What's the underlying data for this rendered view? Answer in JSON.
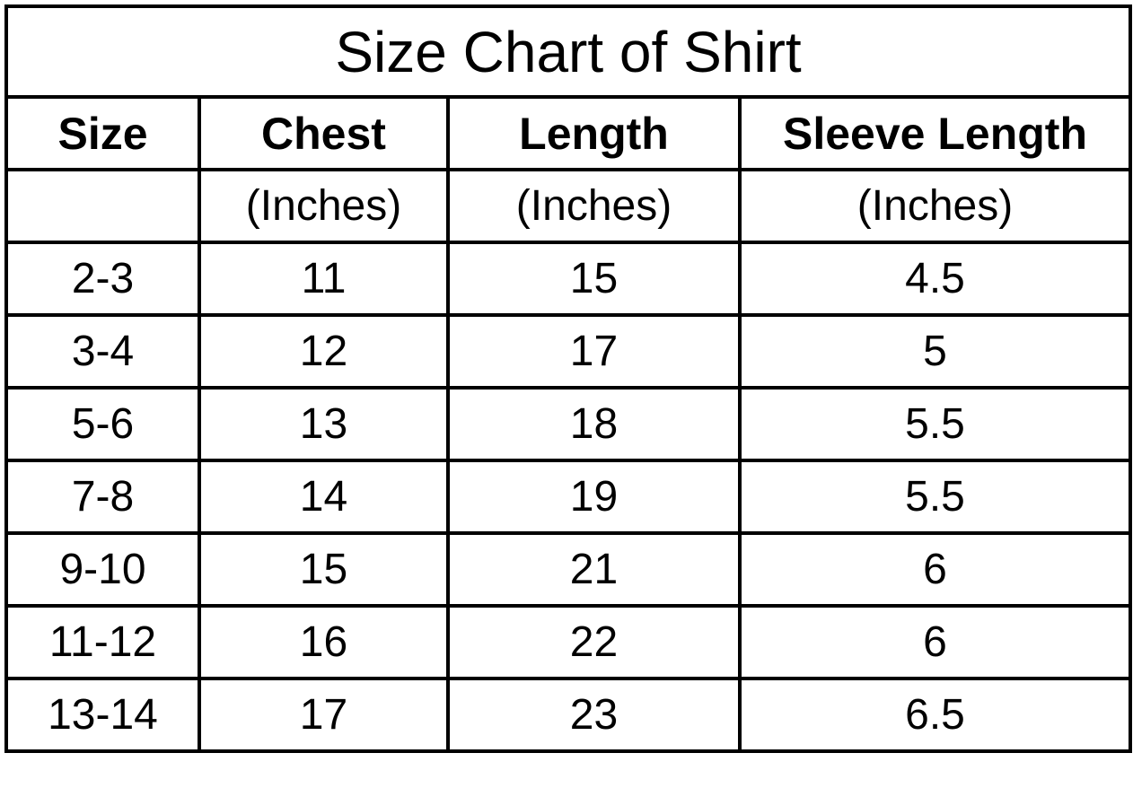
{
  "title": "Size Chart of  Shirt",
  "headers": [
    "Size",
    "Chest",
    "Length",
    "Sleeve Length"
  ],
  "units": [
    "",
    "(Inches)",
    "(Inches)",
    "(Inches)"
  ],
  "rows": [
    [
      "2-3",
      "11",
      "15",
      "4.5"
    ],
    [
      "3-4",
      "12",
      "17",
      "5"
    ],
    [
      "5-6",
      "13",
      "18",
      "5.5"
    ],
    [
      "7-8",
      "14",
      "19",
      "5.5"
    ],
    [
      "9-10",
      "15",
      "21",
      "6"
    ],
    [
      "11-12",
      "16",
      "22",
      "6"
    ],
    [
      "13-14",
      "17",
      "23",
      "6.5"
    ]
  ]
}
